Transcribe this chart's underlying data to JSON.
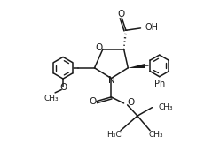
{
  "bg_color": "#ffffff",
  "line_color": "#1a1a1a",
  "line_width": 1.1,
  "font_size": 6.5,
  "fig_width": 2.39,
  "fig_height": 1.89,
  "dpi": 100,
  "xlim": [
    0,
    10
  ],
  "ylim": [
    0,
    8
  ]
}
